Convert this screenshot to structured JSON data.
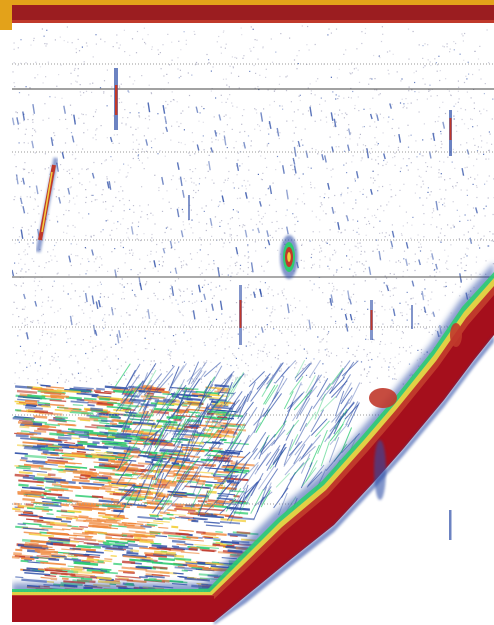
{
  "image": {
    "kind": "echosounder-echogram",
    "colors": {
      "background": "#ffffff",
      "frame_top": "#e3a21a",
      "surface_band": "#9b1d20",
      "seabed_core": "#a50f1c",
      "echo_red": "#c0392b",
      "echo_orange": "#f0873a",
      "echo_yellow": "#f4d03f",
      "echo_green": "#2ecc71",
      "echo_blue": "#2e4fa8",
      "noise": "#b8b8c8",
      "depth_line_solid": "#555555",
      "depth_line_dotted": "#9a9a9a"
    }
  }
}
